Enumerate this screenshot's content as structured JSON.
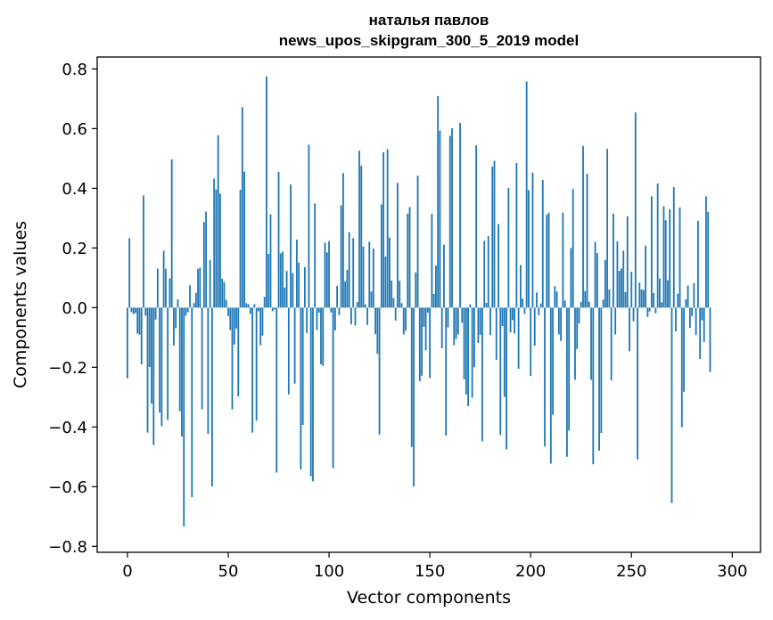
{
  "chart_data": {
    "type": "bar",
    "title_line1": "наталья павлов",
    "title_line2": "news_upos_skipgram_300_5_2019 model",
    "xlabel": "Vector components",
    "ylabel": "Components values",
    "xlim": [
      -15,
      314
    ],
    "ylim": [
      -0.82,
      0.84
    ],
    "xticks": [
      0,
      50,
      100,
      150,
      200,
      250,
      300
    ],
    "xtick_labels": [
      "0",
      "50",
      "100",
      "150",
      "200",
      "250",
      "300"
    ],
    "yticks": [
      -0.8,
      -0.6,
      -0.4,
      -0.2,
      0.0,
      0.2,
      0.4,
      0.6,
      0.8
    ],
    "ytick_labels": [
      "−0.8",
      "−0.6",
      "−0.4",
      "−0.2",
      "0.0",
      "0.2",
      "0.4",
      "0.6",
      "0.8"
    ],
    "color": "#1f77b4",
    "values": [
      -0.237,
      0.233,
      -0.015,
      -0.022,
      -0.018,
      -0.087,
      -0.091,
      -0.19,
      0.376,
      -0.027,
      -0.419,
      -0.199,
      -0.322,
      -0.461,
      -0.04,
      0.131,
      -0.352,
      -0.397,
      0.191,
      0.13,
      -0.376,
      0.098,
      0.497,
      -0.127,
      -0.069,
      0.028,
      -0.347,
      -0.432,
      -0.733,
      -0.027,
      -0.015,
      0.075,
      -0.635,
      0.015,
      0.05,
      0.13,
      0.134,
      -0.341,
      0.287,
      0.322,
      -0.423,
      0.16,
      -0.599,
      0.432,
      0.396,
      0.578,
      0.382,
      0.097,
      0.085,
      0.026,
      -0.028,
      -0.075,
      -0.341,
      -0.124,
      -0.07,
      -0.298,
      0.395,
      0.672,
      0.456,
      0.015,
      0.012,
      -0.021,
      -0.419,
      0.012,
      -0.379,
      -0.012,
      -0.126,
      -0.094,
      0.036,
      0.775,
      0.18,
      0.313,
      -0.012,
      -0.006,
      -0.553,
      0.455,
      0.182,
      0.188,
      0.067,
      0.123,
      -0.291,
      0.413,
      0.116,
      -0.255,
      0.228,
      0.151,
      -0.543,
      -0.393,
      0.136,
      -0.085,
      0.546,
      -0.565,
      -0.582,
      0.349,
      -0.075,
      -0.017,
      -0.19,
      -0.195,
      0.217,
      0.185,
      0.223,
      -0.016,
      -0.538,
      -0.076,
      0.073,
      -0.025,
      0.343,
      0.451,
      0.088,
      0.126,
      0.253,
      -0.056,
      0.233,
      -0.06,
      0.019,
      0.526,
      0.476,
      0.205,
      0.011,
      -0.058,
      0.221,
      0.054,
      0.198,
      -0.089,
      -0.155,
      -0.425,
      0.346,
      0.521,
      0.171,
      0.531,
      0.235,
      0.091,
      0.032,
      -0.043,
      0.418,
      0.09,
      0.015,
      -0.09,
      -0.078,
      0.315,
      0.337,
      -0.467,
      -0.599,
      0.118,
      0.442,
      -0.246,
      -0.228,
      -0.064,
      -0.143,
      -0.017,
      -0.236,
      0.314,
      0.046,
      0.141,
      0.709,
      0.593,
      -0.136,
      0.211,
      -0.429,
      -0.066,
      0.576,
      0.601,
      -0.126,
      -0.105,
      -0.09,
      0.619,
      -0.051,
      -0.24,
      -0.291,
      -0.33,
      0.011,
      -0.302,
      -0.2,
      0.544,
      -0.118,
      -0.091,
      -0.448,
      0.224,
      0.016,
      0.24,
      -0.092,
      0.473,
      0.492,
      -0.175,
      0.28,
      -0.427,
      -0.062,
      -0.299,
      -0.475,
      0.401,
      -0.083,
      -0.042,
      -0.087,
      0.485,
      -0.205,
      0.143,
      0.03,
      -0.021,
      0.758,
      0.394,
      -0.229,
      0.453,
      -0.128,
      0.051,
      -0.025,
      0.014,
      0.428,
      -0.465,
      0.312,
      0.318,
      -0.523,
      -0.359,
      0.072,
      0.054,
      -0.09,
      -0.112,
      0.318,
      0.024,
      -0.5,
      -0.412,
      0.2,
      0.398,
      -0.242,
      -0.139,
      -0.053,
      0.02,
      0.542,
      0.056,
      0.449,
      0.02,
      -0.242,
      -0.525,
      0.22,
      0.183,
      -0.48,
      -0.42,
      0.027,
      0.16,
      0.532,
      0.061,
      -0.244,
      0.315,
      -0.09,
      0.222,
      0.123,
      0.131,
      0.191,
      0.052,
      0.306,
      -0.146,
      0.12,
      -0.046,
      0.654,
      -0.509,
      0.084,
      0.061,
      0.059,
      0.208,
      -0.031,
      -0.013,
      0.373,
      0.049,
      -0.019,
      0.416,
      0.098,
      0.018,
      0.34,
      0.293,
      0.092,
      0.33,
      -0.655,
      0.404,
      -0.08,
      0.047,
      0.336,
      -0.401,
      -0.282,
      0.028,
      0.074,
      -0.068,
      -0.028,
      0.082,
      -0.092,
      0.291,
      -0.172,
      -0.042,
      -0.115,
      0.373,
      0.321,
      -0.216
    ]
  }
}
